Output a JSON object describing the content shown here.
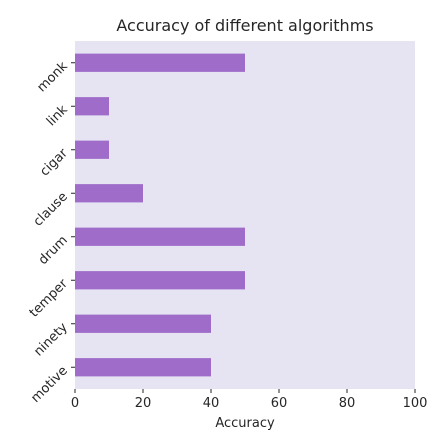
{
  "chart_data": {
    "type": "bar",
    "orientation": "horizontal",
    "title": "Accuracy of different algorithms",
    "xlabel": "Accuracy",
    "ylabel": "",
    "categories": [
      "motive",
      "ninety",
      "temper",
      "drum",
      "clause",
      "cigar",
      "link",
      "monk"
    ],
    "values": [
      40,
      40,
      50,
      50,
      20,
      10,
      10,
      50
    ],
    "xlim": [
      0,
      100
    ],
    "xticks": [
      0,
      20,
      40,
      60,
      80,
      100
    ],
    "grid": false,
    "bar_color": "#9f6dc9",
    "background_color": "#e6e4f2"
  }
}
